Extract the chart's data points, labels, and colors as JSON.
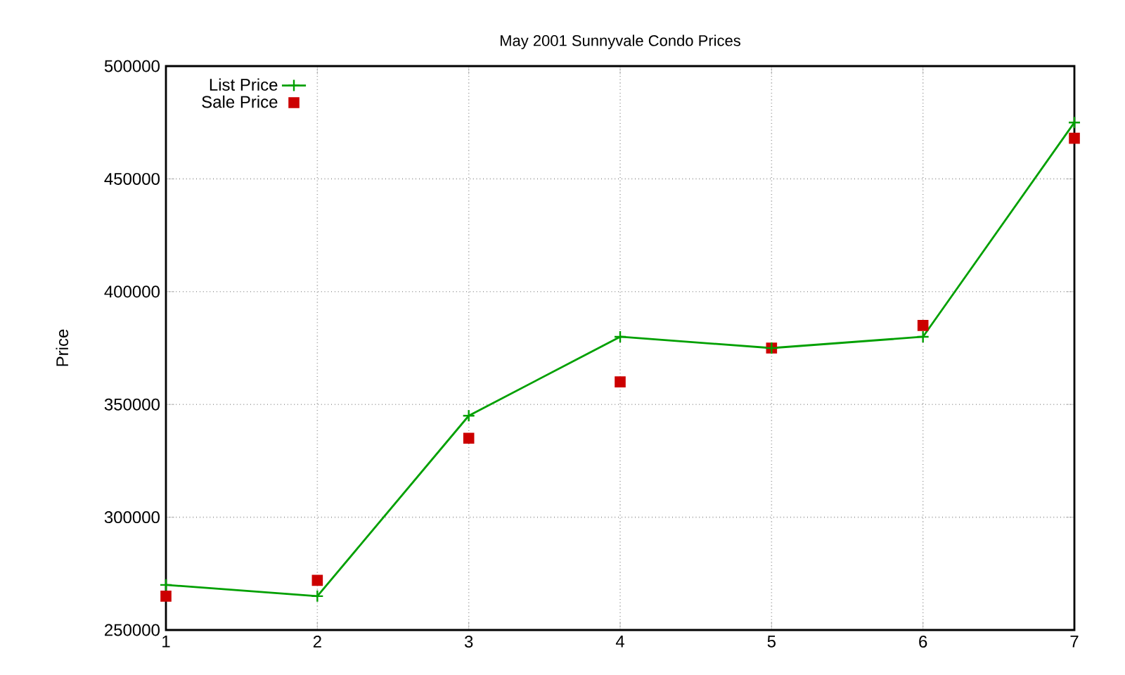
{
  "chart_data": {
    "type": "line",
    "title": "May 2001 Sunnyvale Condo Prices",
    "ylabel": "Price",
    "x": [
      1,
      2,
      3,
      4,
      5,
      6,
      7
    ],
    "series": [
      {
        "name": "List Price",
        "color": "#00a000",
        "values": [
          270000,
          265000,
          345000,
          380000,
          375000,
          380000,
          475000
        ],
        "marker": "cross",
        "line_style": "solid"
      },
      {
        "name": "Sale Price",
        "color": "#cc0000",
        "type": "scatter",
        "values": [
          265000,
          272000,
          335000,
          360000,
          375000,
          385000,
          468000
        ],
        "marker": "square"
      }
    ],
    "xlim": [
      1,
      7
    ],
    "xticks": [
      1,
      2,
      3,
      4,
      5,
      6,
      7
    ],
    "ylim": [
      250000,
      500000
    ],
    "yticks": [
      250000,
      300000,
      350000,
      400000,
      450000,
      500000
    ],
    "grid": true,
    "legend": "top left"
  }
}
